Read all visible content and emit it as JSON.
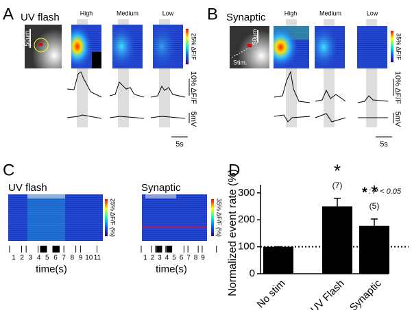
{
  "panels": {
    "A": {
      "letter": "A",
      "title": "UV flash",
      "conditions": [
        "High",
        "Medium",
        "Low"
      ],
      "scale_bar": "50μm",
      "colorbar_label": "25% ΔF/F",
      "trace_scale": "10% ΔF/F",
      "voltage_scale": "5mV",
      "time_scale": "5s"
    },
    "B": {
      "letter": "B",
      "title": "Synaptic",
      "conditions": [
        "High",
        "Medium",
        "Low"
      ],
      "scale_bar": "50μm",
      "stim_label": "Stim.",
      "colorbar_label": "35% ΔF/F",
      "trace_scale": "10% ΔF/F",
      "voltage_scale": "5mV",
      "time_scale": "5s"
    },
    "C": {
      "letter": "C",
      "uv": {
        "title": "UV flash",
        "colorbar_label": "25% ΔF/F (%)",
        "time_ticks": [
          1,
          2,
          3,
          4,
          5,
          6,
          7,
          8,
          9,
          10,
          11
        ]
      },
      "syn": {
        "title": "Synaptic",
        "colorbar_label": "35% ΔF/F (%)",
        "time_ticks": [
          1,
          2,
          3,
          4,
          5,
          6,
          7,
          8,
          9
        ]
      },
      "x_label": "time(s)"
    },
    "D": {
      "letter": "D"
    }
  },
  "chart_data": {
    "type": "bar",
    "y_label": "Normalized event rate (%)",
    "categories": [
      "No stim",
      "UV Flash",
      "Synaptic"
    ],
    "values": [
      100,
      250,
      178
    ],
    "errors": [
      0,
      30,
      25
    ],
    "color": "#000000",
    "ylim": [
      0,
      330
    ],
    "yticks": [
      0,
      100,
      200,
      300
    ],
    "reference_line": 100,
    "annotations": [
      {
        "mark": "*",
        "label": "(7)"
      },
      {
        "mark": "*",
        "label": "(5)"
      }
    ],
    "note_symbol": "*",
    "note_text": ": P < 0.05"
  }
}
